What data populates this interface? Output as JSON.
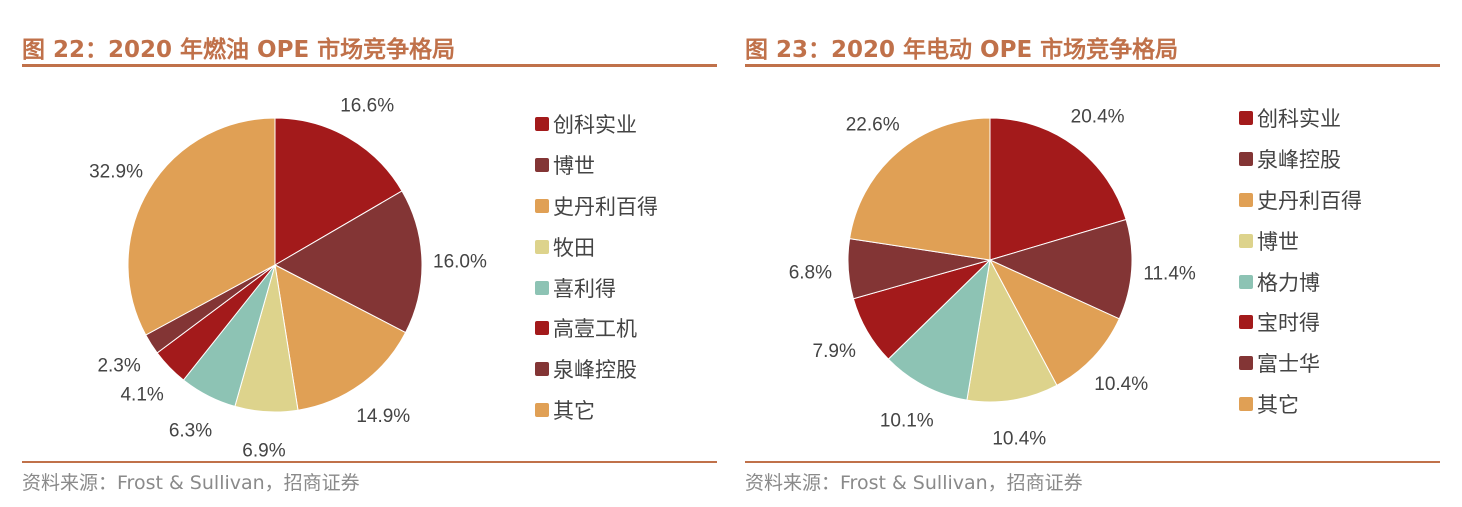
{
  "source_label": "资料来源：Frost & Sullivan，招商证券",
  "chart_data": [
    {
      "type": "pie",
      "title": "图 22：2020 年燃油 OPE 市场竞争格局",
      "unit": "%",
      "categories": [
        "创科实业",
        "博世",
        "史丹利百得",
        "牧田",
        "喜利得",
        "高壹工机",
        "泉峰控股",
        "其它"
      ],
      "values": [
        16.6,
        16.0,
        14.9,
        6.9,
        6.3,
        4.1,
        2.3,
        32.9
      ],
      "data_labels": [
        "16.6%",
        "16.0%",
        "14.9%",
        "6.9%",
        "6.3%",
        "4.1%",
        "2.3%",
        "32.9%"
      ],
      "colors": [
        "#A31A1B",
        "#833535",
        "#E0A055",
        "#DDD38C",
        "#8DC3B4",
        "#A31A1B",
        "#833535",
        "#E0A055"
      ],
      "legend_position": "right",
      "start": "top, clockwise"
    },
    {
      "type": "pie",
      "title": "图 23：2020 年电动 OPE 市场竞争格局",
      "unit": "%",
      "categories": [
        "创科实业",
        "泉峰控股",
        "史丹利百得",
        "博世",
        "格力博",
        "宝时得",
        "富士华",
        "其它"
      ],
      "values": [
        20.4,
        11.4,
        10.4,
        10.4,
        10.1,
        7.9,
        6.8,
        22.6
      ],
      "data_labels": [
        "20.4%",
        "11.4%",
        "10.4%",
        "10.4%",
        "10.1%",
        "7.9%",
        "6.8%",
        "22.6%"
      ],
      "colors": [
        "#A31A1B",
        "#833535",
        "#E0A055",
        "#DDD38C",
        "#8DC3B4",
        "#A31A1B",
        "#833535",
        "#E0A055"
      ],
      "legend_position": "right",
      "start": "top, clockwise"
    }
  ]
}
